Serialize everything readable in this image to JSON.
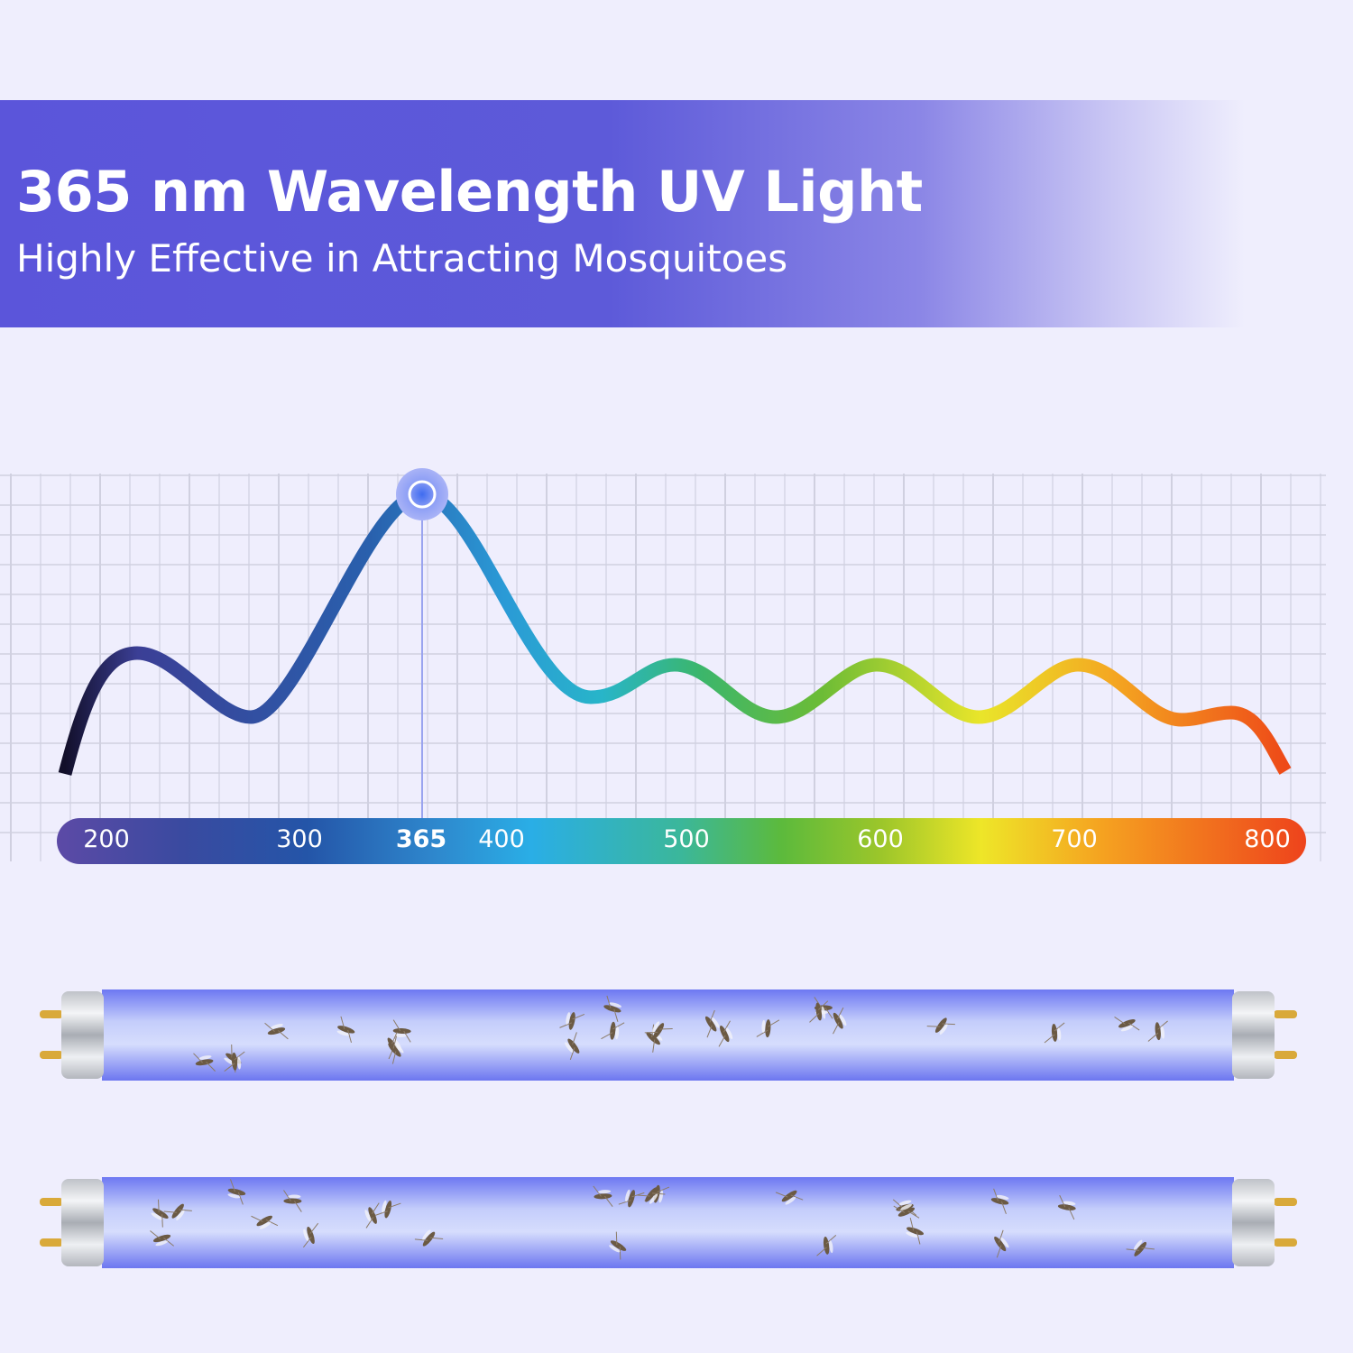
{
  "header": {
    "title": "365 nm Wavelength UV Light",
    "subtitle": "Highly Effective in Attracting Mosquitoes"
  },
  "spectrum": {
    "unit_hint_highlight": "365",
    "ticks": [
      {
        "label": "200",
        "value": 200,
        "highlight": false
      },
      {
        "label": "300",
        "value": 300,
        "highlight": false
      },
      {
        "label": "365",
        "value": 365,
        "highlight": true
      },
      {
        "label": "400",
        "value": 400,
        "highlight": false
      },
      {
        "label": "500",
        "value": 500,
        "highlight": false
      },
      {
        "label": "600",
        "value": 600,
        "highlight": false
      },
      {
        "label": "700",
        "value": 700,
        "highlight": false
      },
      {
        "label": "800",
        "value": 800,
        "highlight": false
      }
    ],
    "peak_value": 365,
    "colors": [
      "#5b4aa8",
      "#2a4fa0",
      "#2aa8e0",
      "#3dbb6a",
      "#8bc42c",
      "#f0e428",
      "#f39a20",
      "#ee4a1c"
    ]
  },
  "products": [
    {
      "name": "uv-tube-1"
    },
    {
      "name": "uv-tube-2"
    }
  ]
}
